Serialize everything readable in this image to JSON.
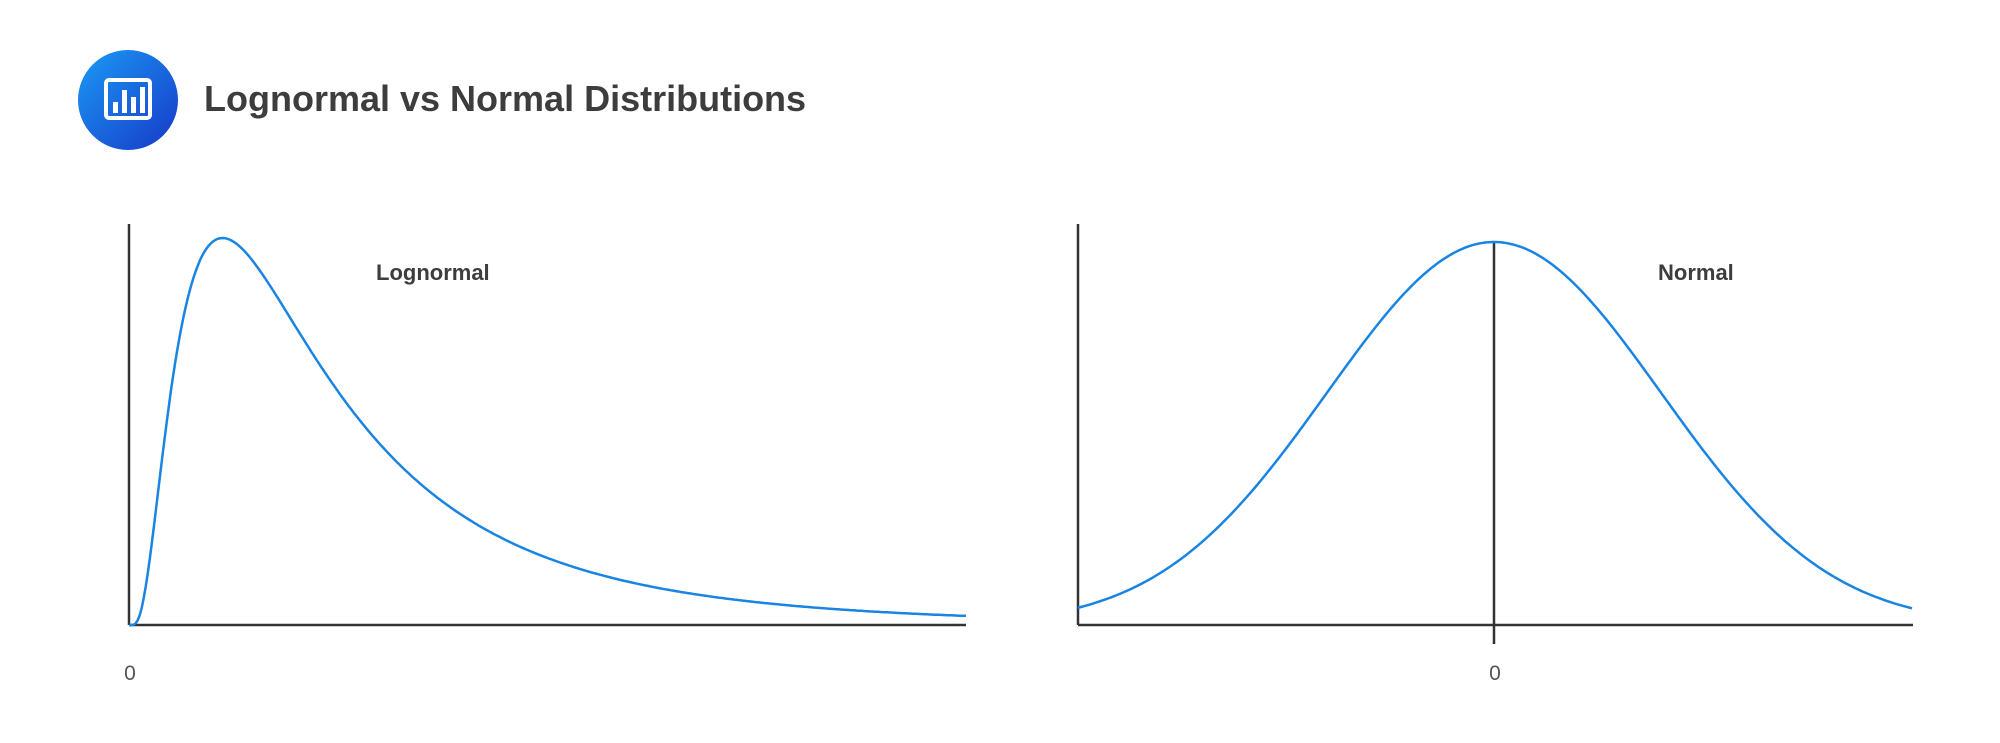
{
  "header": {
    "title": "Lognormal vs Normal Distributions",
    "icon": "bar-chart-icon"
  },
  "colors": {
    "curve": "#1a84e2",
    "axis": "#333333",
    "icon_start": "#1a9af5",
    "icon_end": "#1838c8"
  },
  "chart_data": [
    {
      "type": "line",
      "label": "Lognormal",
      "x_ticks": [
        "0"
      ],
      "shape": "right-skewed, starts at 0, peak near left, long right tail",
      "grid": false
    },
    {
      "type": "line",
      "label": "Normal",
      "x_ticks": [
        "0"
      ],
      "shape": "symmetric bell curve centered at 0",
      "center_line": true,
      "grid": false
    }
  ]
}
